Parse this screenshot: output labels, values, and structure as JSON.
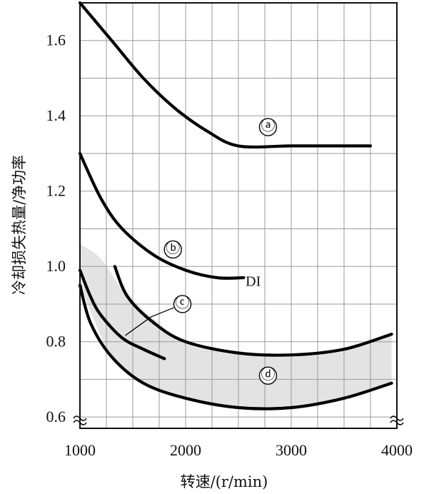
{
  "chart_data": {
    "type": "line",
    "title": "",
    "xlabel": "转速/(r/min)",
    "ylabel": "冷却损失热量/净功率",
    "xlim": [
      1000,
      4000
    ],
    "ylim": [
      0.57,
      1.7
    ],
    "grid": true,
    "axis_break": true,
    "x_ticks": [
      1000,
      2000,
      3000,
      4000
    ],
    "x_tick_labels": [
      "1000",
      "2000",
      "3000",
      "4000"
    ],
    "y_ticks": [
      0.6,
      0.8,
      1.0,
      1.2,
      1.4,
      1.6
    ],
    "y_tick_labels": [
      "0.6",
      "0.8",
      "1.0",
      "1.2",
      "1.4",
      "1.6"
    ],
    "series": [
      {
        "name": "a",
        "x": [
          1000,
          1300,
          1600,
          1900,
          2200,
          2500,
          3000,
          3500,
          3750
        ],
        "y": [
          1.7,
          1.6,
          1.5,
          1.42,
          1.36,
          1.32,
          1.32,
          1.32,
          1.32
        ]
      },
      {
        "name": "b",
        "x": [
          1000,
          1200,
          1400,
          1700,
          2000,
          2300,
          2550
        ],
        "y": [
          1.3,
          1.18,
          1.1,
          1.03,
          0.99,
          0.97,
          0.97
        ]
      },
      {
        "name": "c",
        "x": [
          1000,
          1100,
          1200,
          1400,
          1600,
          1800
        ],
        "y": [
          0.99,
          0.92,
          0.87,
          0.81,
          0.78,
          0.755
        ]
      },
      {
        "name": "d-upper",
        "x": [
          1330,
          1450,
          1700,
          2000,
          2500,
          3000,
          3500,
          3950
        ],
        "y": [
          1.0,
          0.92,
          0.85,
          0.8,
          0.77,
          0.765,
          0.78,
          0.82
        ]
      },
      {
        "name": "d-lower",
        "x": [
          1000,
          1100,
          1300,
          1600,
          2000,
          2500,
          3000,
          3500,
          3950
        ],
        "y": [
          0.95,
          0.85,
          0.76,
          0.69,
          0.65,
          0.625,
          0.625,
          0.65,
          0.69
        ]
      }
    ],
    "band": {
      "upper": {
        "x": [
          1000,
          1200,
          1400,
          1700,
          2000,
          2500,
          3000,
          3500,
          3950
        ],
        "y": [
          1.06,
          1.02,
          0.94,
          0.86,
          0.8,
          0.77,
          0.765,
          0.78,
          0.82
        ]
      },
      "lower": {
        "x": [
          1000,
          1300,
          1600,
          2000,
          2500,
          3000,
          3500,
          3950
        ],
        "y": [
          0.95,
          0.76,
          0.69,
          0.65,
          0.625,
          0.625,
          0.65,
          0.69
        ]
      }
    },
    "annotations": [
      {
        "text": "ⓐ",
        "x": 2780,
        "y": 1.37
      },
      {
        "text": "ⓑ",
        "x": 1880,
        "y": 1.045
      },
      {
        "text": "DI",
        "x": 2640,
        "y": 0.957
      },
      {
        "text": "ⓒ",
        "x": 1970,
        "y": 0.9
      },
      {
        "text": "ⓓ",
        "x": 2780,
        "y": 0.71
      }
    ]
  }
}
